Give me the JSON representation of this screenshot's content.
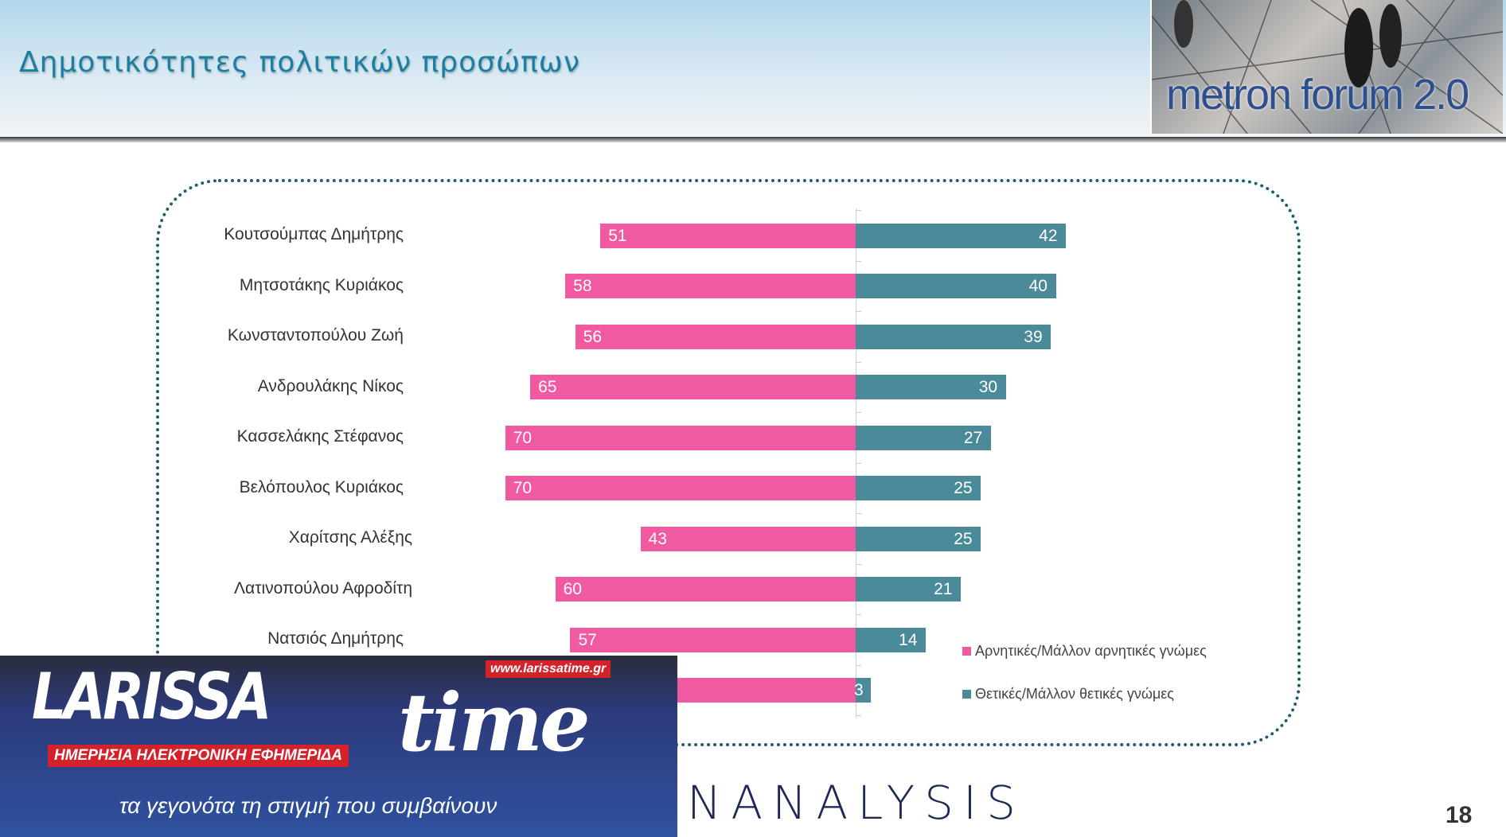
{
  "header": {
    "title": "Δημοτικότητες πολιτικών προσώπων",
    "logo_text": "metron forum 2.0"
  },
  "colors": {
    "negative": "#f05aa0",
    "positive": "#4a8a99",
    "title": "#1b7f9f"
  },
  "chart_data": {
    "type": "bar",
    "orientation": "horizontal-diverging",
    "categories": [
      "Κουτσούμπας Δημήτρης",
      "Μητσοτάκης Κυριάκος",
      "Κωνσταντοπούλου Ζωή",
      "Ανδρουλάκης Νίκος",
      "Κασσελάκης Στέφανος",
      "Βελόπουλος Κυριάκος",
      "Χαρίτσης Αλέξης",
      "Λατινοπούλου Αφροδίτη",
      "Νατσιός Δημήτρης",
      ""
    ],
    "series": [
      {
        "name": "Αρνητικές/Μάλλον αρνητικές γνώμες",
        "values": [
          51,
          58,
          56,
          65,
          70,
          70,
          43,
          60,
          57,
          null
        ]
      },
      {
        "name": "Θετικές/Μάλλον θετικές γνώμες",
        "values": [
          42,
          40,
          39,
          30,
          27,
          25,
          25,
          21,
          14,
          3
        ]
      }
    ],
    "legend": "right",
    "grid": false
  },
  "footer": {
    "brand": "NANALYSIS",
    "page_number": "18"
  },
  "overlay": {
    "logo_text": "LARISSA time",
    "url": "www.larissatime.gr",
    "subtitle": "ΗΜΕΡΗΣΙΑ ΗΛΕΚΤΡΟΝΙΚΗ ΕΦΗΜΕΡΙΔΑ",
    "tagline": "τα γεγονότα τη στιγμή που συμβαίνουν"
  }
}
